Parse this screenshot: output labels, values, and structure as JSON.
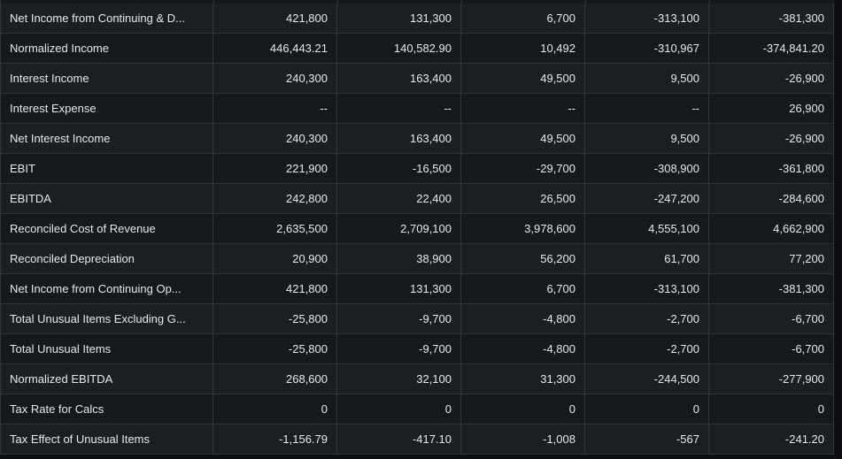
{
  "table": {
    "rows": [
      {
        "label": "Net Income from Continuing & D...",
        "values": [
          "421,800",
          "131,300",
          "6,700",
          "-313,100",
          "-381,300"
        ]
      },
      {
        "label": "Normalized Income",
        "values": [
          "446,443.21",
          "140,582.90",
          "10,492",
          "-310,967",
          "-374,841.20"
        ]
      },
      {
        "label": "Interest Income",
        "values": [
          "240,300",
          "163,400",
          "49,500",
          "9,500",
          "-26,900"
        ]
      },
      {
        "label": "Interest Expense",
        "values": [
          "--",
          "--",
          "--",
          "--",
          "26,900"
        ]
      },
      {
        "label": "Net Interest Income",
        "values": [
          "240,300",
          "163,400",
          "49,500",
          "9,500",
          "-26,900"
        ]
      },
      {
        "label": "EBIT",
        "values": [
          "221,900",
          "-16,500",
          "-29,700",
          "-308,900",
          "-361,800"
        ]
      },
      {
        "label": "EBITDA",
        "values": [
          "242,800",
          "22,400",
          "26,500",
          "-247,200",
          "-284,600"
        ]
      },
      {
        "label": "Reconciled Cost of Revenue",
        "values": [
          "2,635,500",
          "2,709,100",
          "3,978,600",
          "4,555,100",
          "4,662,900"
        ]
      },
      {
        "label": "Reconciled Depreciation",
        "values": [
          "20,900",
          "38,900",
          "56,200",
          "61,700",
          "77,200"
        ]
      },
      {
        "label": "Net Income from Continuing Op...",
        "values": [
          "421,800",
          "131,300",
          "6,700",
          "-313,100",
          "-381,300"
        ]
      },
      {
        "label": "Total Unusual Items Excluding G...",
        "values": [
          "-25,800",
          "-9,700",
          "-4,800",
          "-2,700",
          "-6,700"
        ]
      },
      {
        "label": "Total Unusual Items",
        "values": [
          "-25,800",
          "-9,700",
          "-4,800",
          "-2,700",
          "-6,700"
        ]
      },
      {
        "label": "Normalized EBITDA",
        "values": [
          "268,600",
          "32,100",
          "31,300",
          "-244,500",
          "-277,900"
        ]
      },
      {
        "label": "Tax Rate for Calcs",
        "values": [
          "0",
          "0",
          "0",
          "0",
          "0"
        ]
      },
      {
        "label": "Tax Effect of Unusual Items",
        "values": [
          "-1,156.79",
          "-417.10",
          "-1,008",
          "-567",
          "-241.20"
        ]
      }
    ]
  }
}
